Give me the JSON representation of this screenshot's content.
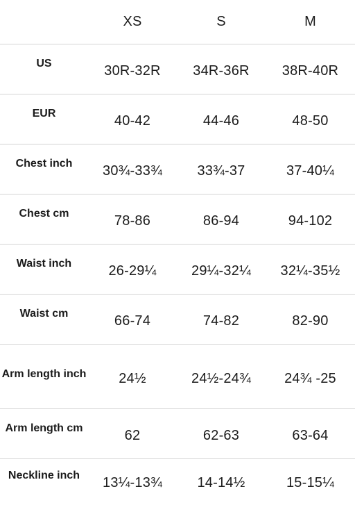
{
  "columns": [
    "XS",
    "S",
    "M"
  ],
  "rows": [
    {
      "label": "US",
      "values": [
        "30R-32R",
        "34R-36R",
        "38R-40R"
      ]
    },
    {
      "label": "EUR",
      "values": [
        "40-42",
        "44-46",
        "48-50"
      ]
    },
    {
      "label": "Chest inch",
      "values": [
        "30¾-33¾",
        "33¾-37",
        "37-40¼"
      ]
    },
    {
      "label": "Chest cm",
      "values": [
        "78-86",
        "86-94",
        "94-102"
      ]
    },
    {
      "label": "Waist inch",
      "values": [
        "26-29¼",
        "29¼-32¼",
        "32¼-35½"
      ]
    },
    {
      "label": "Waist cm",
      "values": [
        "66-74",
        "74-82",
        "82-90"
      ]
    },
    {
      "label": "Arm length inch",
      "values": [
        "24½",
        "24½-24¾",
        "24¾ -25"
      ]
    },
    {
      "label": "Arm length cm",
      "values": [
        "62",
        "62-63",
        "63-64"
      ]
    },
    {
      "label": "Neckline inch",
      "values": [
        "13¼-13¾",
        "14-14½",
        "15-15¼"
      ]
    }
  ]
}
